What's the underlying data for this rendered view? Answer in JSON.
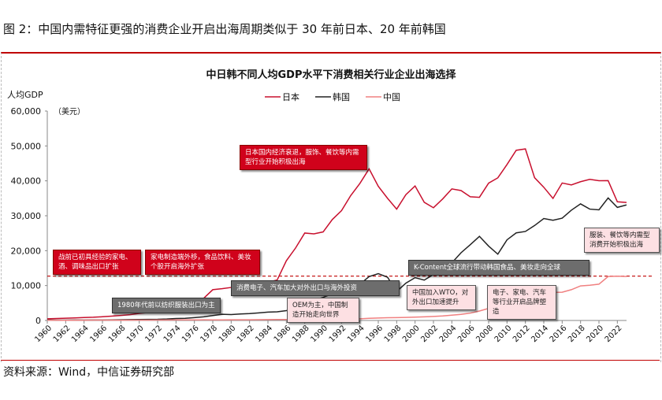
{
  "figure_title": "图 2：中国内需特征更强的消费企业开启出海周期类似于 30 年前日本、20 年前韩国",
  "source": "资料来源：Wind，中信证券研究部",
  "chart_data": {
    "type": "line",
    "title": "中日韩不同人均GDP水平下消费相关行业企业出海选择",
    "ylabel": "人均GDP",
    "yunit": "（美元）",
    "ylim": [
      0,
      60000
    ],
    "yticks": [
      "0",
      "10,000",
      "20,000",
      "30,000",
      "40,000",
      "50,000",
      "60,000"
    ],
    "xlim": [
      1960,
      2023
    ],
    "xticks": [
      "1960",
      "1962",
      "1964",
      "1966",
      "1968",
      "1970",
      "1972",
      "1974",
      "1976",
      "1978",
      "1980",
      "1982",
      "1984",
      "1986",
      "1988",
      "1990",
      "1992",
      "1994",
      "1996",
      "1998",
      "2000",
      "2002",
      "2004",
      "2006",
      "2008",
      "2010",
      "2012",
      "2014",
      "2016",
      "2018",
      "2020",
      "2022"
    ],
    "legend_position": "top",
    "reference_line": {
      "value": 12700,
      "style": "dashed",
      "color": "#c00000"
    },
    "series": [
      {
        "name": "日本",
        "color": "#c8102e",
        "values": [
          480,
          560,
          640,
          720,
          840,
          920,
          1060,
          1230,
          1450,
          1670,
          2040,
          2270,
          2970,
          3990,
          4350,
          4670,
          5200,
          6330,
          8820,
          9100,
          9460,
          10360,
          9580,
          10420,
          10980,
          11580,
          17110,
          20750,
          25050,
          24810,
          25370,
          28920,
          31460,
          35770,
          39270,
          43440,
          38440,
          35020,
          31900,
          36030,
          38530,
          33850,
          32290,
          34810,
          37690,
          37220,
          35430,
          35280,
          39340,
          40860,
          44670,
          48760,
          49150,
          40900,
          38160,
          34960,
          39380,
          38830,
          39750,
          40420,
          40040,
          40060,
          34000,
          33800
        ]
      },
      {
        "name": "韩国",
        "color": "#222222",
        "values": [
          160,
          120,
          110,
          140,
          120,
          130,
          130,
          160,
          200,
          240,
          280,
          310,
          330,
          410,
          560,
          620,
          830,
          1050,
          1400,
          1780,
          1700,
          1850,
          1970,
          2180,
          2410,
          2480,
          2830,
          3550,
          4750,
          5810,
          6610,
          7640,
          8130,
          8880,
          10390,
          12560,
          13400,
          12400,
          8300,
          10700,
          12260,
          11560,
          13170,
          14670,
          16500,
          19400,
          21700,
          24100,
          21300,
          19000,
          23100,
          25100,
          25500,
          27200,
          29200,
          28700,
          29300,
          31600,
          33400,
          31900,
          31700,
          35100,
          32400,
          33100
        ]
      },
      {
        "name": "中国",
        "color": "#f08080",
        "values": [
          90,
          75,
          70,
          75,
          85,
          100,
          110,
          105,
          95,
          100,
          115,
          120,
          130,
          155,
          160,
          180,
          165,
          190,
          160,
          180,
          195,
          200,
          200,
          230,
          250,
          290,
          280,
          250,
          280,
          310,
          320,
          330,
          370,
          380,
          470,
          610,
          710,
          780,
          830,
          870,
          960,
          1050,
          1150,
          1290,
          1510,
          1750,
          2100,
          2700,
          3470,
          3830,
          4550,
          5610,
          6300,
          7020,
          7640,
          8030,
          8090,
          8820,
          9900,
          10100,
          10400,
          12600,
          12700,
          12600
        ]
      }
    ],
    "annotations": [
      {
        "text": "日本国内经济衰退，服饰、餐饮等内需型行业开始积极出海",
        "style": "red"
      },
      {
        "text": "战前已初具经验的家电、酒、调味品出口扩张",
        "style": "red"
      },
      {
        "text": "家电制造端外移，食品饮料、美妆个股开启海外扩张",
        "style": "red"
      },
      {
        "text": "1980年代前以纺织服装出口为主",
        "style": "grey"
      },
      {
        "text": "消费电子、汽车加大对外出口与海外投资",
        "style": "grey"
      },
      {
        "text": "K-Content全球流行带动韩国食品、美妆走向全球",
        "style": "grey"
      },
      {
        "text": "OEM为主，中国制造开始走向世界",
        "style": "pink"
      },
      {
        "text": "中国加入WTO，对外出口加速提升",
        "style": "pink"
      },
      {
        "text": "电子、家电、汽车等行业开启品牌塑造",
        "style": "pink"
      },
      {
        "text": "服装、餐饮等内需型消费开始积极出海",
        "style": "pink"
      }
    ]
  }
}
